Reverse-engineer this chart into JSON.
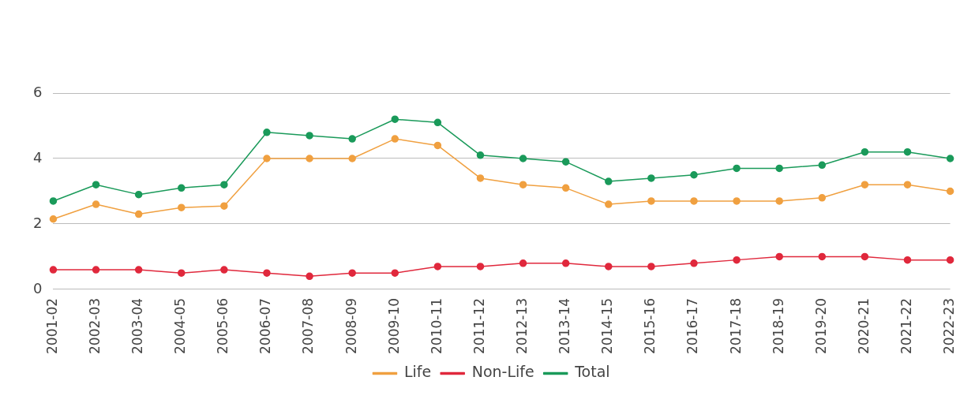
{
  "chart_data": {
    "type": "line",
    "categories": [
      "2001-02",
      "2002-03",
      "2003-04",
      "2004-05",
      "2005-06",
      "2006-07",
      "2007-08",
      "2008-09",
      "2009-10",
      "2010-11",
      "2011-12",
      "2012-13",
      "2013-14",
      "2014-15",
      "2015-16",
      "2016-17",
      "2017-18",
      "2018-19",
      "2019-20",
      "2020-21",
      "2021-22",
      "2022-23"
    ],
    "series": [
      {
        "name": "Life",
        "color": "#f0a040",
        "values": [
          2.15,
          2.6,
          2.3,
          2.5,
          2.55,
          4.0,
          4.0,
          4.0,
          4.6,
          4.4,
          3.4,
          3.2,
          3.1,
          2.6,
          2.7,
          2.7,
          2.7,
          2.7,
          2.8,
          3.2,
          3.2,
          3.0
        ]
      },
      {
        "name": "Non-Life",
        "color": "#e0283c",
        "values": [
          0.6,
          0.6,
          0.6,
          0.5,
          0.6,
          0.5,
          0.4,
          0.5,
          0.5,
          0.7,
          0.7,
          0.8,
          0.8,
          0.7,
          0.7,
          0.8,
          0.9,
          1.0,
          1.0,
          1.0,
          0.9,
          0.9
        ]
      },
      {
        "name": "Total",
        "color": "#1a9a5a",
        "values": [
          2.7,
          3.2,
          2.9,
          3.1,
          3.2,
          4.8,
          4.7,
          4.6,
          5.2,
          5.1,
          4.1,
          4.0,
          3.9,
          3.3,
          3.4,
          3.5,
          3.7,
          3.7,
          3.8,
          4.2,
          4.2,
          4.0
        ]
      }
    ],
    "ylim": [
      0,
      6
    ],
    "yticks": [
      0,
      2,
      4,
      6
    ],
    "grid": "y",
    "legend": "bottom",
    "marker": "circle",
    "line_style": "solid"
  }
}
